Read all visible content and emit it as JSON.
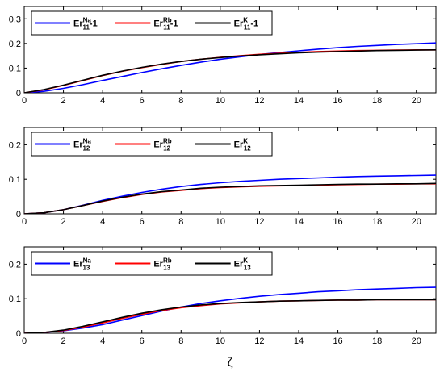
{
  "figure": {
    "xlabel": "ζ",
    "xticks": [
      0,
      2,
      4,
      6,
      8,
      10,
      12,
      14,
      16,
      18,
      20
    ],
    "xlim": [
      0,
      21
    ]
  },
  "colors": {
    "Na": "#0000ff",
    "Rb": "#ff0000",
    "K": "#000000"
  },
  "chart_data": [
    {
      "type": "line",
      "ylim": [
        0,
        0.35
      ],
      "yticks": [
        "0",
        "0.1",
        "0.2",
        "0.3"
      ],
      "ytick_values": [
        0,
        0.1,
        0.2,
        0.3
      ],
      "legend_position": "top-left",
      "legend": [
        {
          "base": "Er",
          "sub": "11",
          "sup": "Na",
          "suffix": "-1",
          "color": "#0000ff"
        },
        {
          "base": "Er",
          "sub": "11",
          "sup": "Rb",
          "suffix": "-1",
          "color": "#ff0000"
        },
        {
          "base": "Er",
          "sub": "11",
          "sup": "K",
          "suffix": "-1",
          "color": "#000000"
        }
      ],
      "x": [
        0,
        1,
        2,
        3,
        4,
        5,
        6,
        7,
        8,
        9,
        10,
        11,
        12,
        13,
        14,
        15,
        16,
        17,
        18,
        19,
        20,
        21
      ],
      "series": [
        {
          "name": "Er11Na-1",
          "color": "#0000ff",
          "values": [
            0,
            0.006,
            0.018,
            0.033,
            0.05,
            0.066,
            0.082,
            0.097,
            0.111,
            0.124,
            0.136,
            0.146,
            0.155,
            0.163,
            0.17,
            0.177,
            0.183,
            0.188,
            0.192,
            0.196,
            0.199,
            0.202
          ]
        },
        {
          "name": "Er11Rb-1",
          "color": "#ff0000",
          "values": [
            0,
            0.012,
            0.03,
            0.05,
            0.07,
            0.087,
            0.102,
            0.115,
            0.127,
            0.136,
            0.144,
            0.15,
            0.156,
            0.16,
            0.164,
            0.167,
            0.169,
            0.171,
            0.172,
            0.173,
            0.174,
            0.174
          ]
        },
        {
          "name": "Er11K-1",
          "color": "#000000",
          "values": [
            0,
            0.013,
            0.031,
            0.051,
            0.071,
            0.088,
            0.103,
            0.116,
            0.127,
            0.136,
            0.143,
            0.149,
            0.154,
            0.158,
            0.162,
            0.165,
            0.167,
            0.169,
            0.171,
            0.172,
            0.173,
            0.174
          ]
        }
      ]
    },
    {
      "type": "line",
      "ylim": [
        0,
        0.25
      ],
      "yticks": [
        "0",
        "0.1",
        "0.2"
      ],
      "ytick_values": [
        0,
        0.1,
        0.2
      ],
      "legend_position": "top-left",
      "legend": [
        {
          "base": "Er",
          "sub": "12",
          "sup": "Na",
          "suffix": "",
          "color": "#0000ff"
        },
        {
          "base": "Er",
          "sub": "12",
          "sup": "Rb",
          "suffix": "",
          "color": "#ff0000"
        },
        {
          "base": "Er",
          "sub": "12",
          "sup": "K",
          "suffix": "",
          "color": "#000000"
        }
      ],
      "x": [
        0,
        1,
        2,
        3,
        4,
        5,
        6,
        7,
        8,
        9,
        10,
        11,
        12,
        13,
        14,
        15,
        16,
        17,
        18,
        19,
        20,
        21
      ],
      "series": [
        {
          "name": "Er12Na",
          "color": "#0000ff",
          "values": [
            0,
            0.003,
            0.012,
            0.025,
            0.039,
            0.051,
            0.062,
            0.071,
            0.079,
            0.085,
            0.09,
            0.094,
            0.097,
            0.1,
            0.102,
            0.104,
            0.106,
            0.108,
            0.109,
            0.11,
            0.111,
            0.112
          ]
        },
        {
          "name": "Er12Rb",
          "color": "#ff0000",
          "values": [
            0,
            0.003,
            0.012,
            0.024,
            0.036,
            0.047,
            0.056,
            0.063,
            0.068,
            0.073,
            0.076,
            0.078,
            0.08,
            0.081,
            0.082,
            0.083,
            0.084,
            0.085,
            0.086,
            0.086,
            0.087,
            0.087
          ]
        },
        {
          "name": "Er12K",
          "color": "#000000",
          "values": [
            0,
            0.003,
            0.012,
            0.024,
            0.037,
            0.048,
            0.057,
            0.064,
            0.069,
            0.074,
            0.077,
            0.079,
            0.081,
            0.082,
            0.083,
            0.084,
            0.085,
            0.086,
            0.086,
            0.087,
            0.087,
            0.088
          ]
        }
      ]
    },
    {
      "type": "line",
      "ylim": [
        0,
        0.25
      ],
      "yticks": [
        "0",
        "0.1",
        "0.2"
      ],
      "ytick_values": [
        0,
        0.1,
        0.2
      ],
      "legend_position": "top-left",
      "legend": [
        {
          "base": "Er",
          "sub": "13",
          "sup": "Na",
          "suffix": "",
          "color": "#0000ff"
        },
        {
          "base": "Er",
          "sub": "13",
          "sup": "Rb",
          "suffix": "",
          "color": "#ff0000"
        },
        {
          "base": "Er",
          "sub": "13",
          "sup": "K",
          "suffix": "",
          "color": "#000000"
        }
      ],
      "x": [
        0,
        1,
        2,
        3,
        4,
        5,
        6,
        7,
        8,
        9,
        10,
        11,
        12,
        13,
        14,
        15,
        16,
        17,
        18,
        19,
        20,
        21
      ],
      "series": [
        {
          "name": "Er13Na",
          "color": "#0000ff",
          "values": [
            0,
            0.002,
            0.007,
            0.015,
            0.025,
            0.038,
            0.051,
            0.064,
            0.076,
            0.086,
            0.094,
            0.101,
            0.107,
            0.112,
            0.116,
            0.12,
            0.123,
            0.126,
            0.128,
            0.13,
            0.132,
            0.133
          ]
        },
        {
          "name": "Er13Rb",
          "color": "#ff0000",
          "values": [
            0,
            0.002,
            0.008,
            0.018,
            0.03,
            0.043,
            0.055,
            0.066,
            0.074,
            0.08,
            0.085,
            0.088,
            0.091,
            0.093,
            0.094,
            0.095,
            0.096,
            0.096,
            0.097,
            0.097,
            0.097,
            0.097
          ]
        },
        {
          "name": "Er13K",
          "color": "#000000",
          "values": [
            0,
            0.002,
            0.009,
            0.02,
            0.033,
            0.046,
            0.058,
            0.068,
            0.076,
            0.082,
            0.086,
            0.089,
            0.091,
            0.093,
            0.094,
            0.095,
            0.096,
            0.096,
            0.097,
            0.097,
            0.097,
            0.097
          ]
        }
      ]
    }
  ]
}
